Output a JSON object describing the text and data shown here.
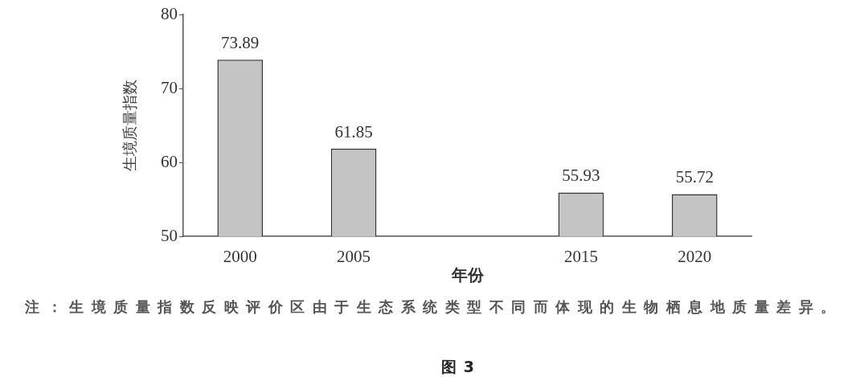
{
  "chart_data": {
    "type": "bar",
    "categories": [
      "2000",
      "2005",
      null,
      "2015",
      "2020"
    ],
    "values": [
      73.89,
      61.85,
      null,
      55.93,
      55.72
    ],
    "color": "#c4c4c4",
    "ylabel": "生境质量指数",
    "xlabel": "年份",
    "ylim": [
      50,
      80
    ],
    "yticks": [
      50,
      60,
      70,
      80
    ],
    "data_labels": true,
    "annotations": [
      "注：生境质量指数反映评价区由于生态系统类型不同而体现的生物栖息地质量差异。",
      "图 3"
    ]
  }
}
